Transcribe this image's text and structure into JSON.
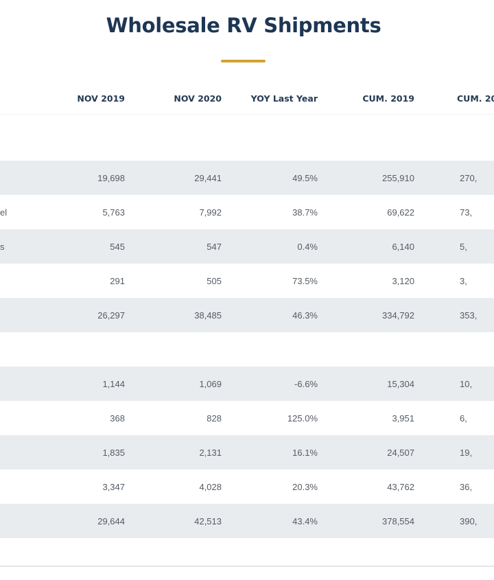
{
  "title": "Wholesale RV Shipments",
  "colors": {
    "title": "#1d3654",
    "accent": "#d4a230",
    "row_shade": "#e9ecef"
  },
  "columns": [
    "",
    "NOV 2019",
    "NOV 2020",
    "YOY Last Year",
    "CUM. 2019",
    "CUM. 20"
  ],
  "section1": [
    {
      "label": "",
      "cells": [
        "19,698",
        "29,441",
        "49.5%",
        "255,910",
        "270,"
      ]
    },
    {
      "label": "el",
      "cells": [
        "5,763",
        "7,992",
        "38.7%",
        "69,622",
        "73,"
      ]
    },
    {
      "label": "s",
      "cells": [
        "545",
        "547",
        "0.4%",
        "6,140",
        "5,"
      ]
    },
    {
      "label": "",
      "cells": [
        "291",
        "505",
        "73.5%",
        "3,120",
        "3,"
      ]
    },
    {
      "label": "",
      "cells": [
        "26,297",
        "38,485",
        "46.3%",
        "334,792",
        "353,"
      ]
    }
  ],
  "section2": [
    {
      "label": "",
      "cells": [
        "1,144",
        "1,069",
        "-6.6%",
        "15,304",
        "10,"
      ]
    },
    {
      "label": "",
      "cells": [
        "368",
        "828",
        "125.0%",
        "3,951",
        "6,"
      ]
    },
    {
      "label": "",
      "cells": [
        "1,835",
        "2,131",
        "16.1%",
        "24,507",
        "19,"
      ]
    },
    {
      "label": "",
      "cells": [
        "3,347",
        "4,028",
        "20.3%",
        "43,762",
        "36,"
      ]
    },
    {
      "label": "",
      "cells": [
        "29,644",
        "42,513",
        "43.4%",
        "378,554",
        "390,"
      ]
    }
  ]
}
